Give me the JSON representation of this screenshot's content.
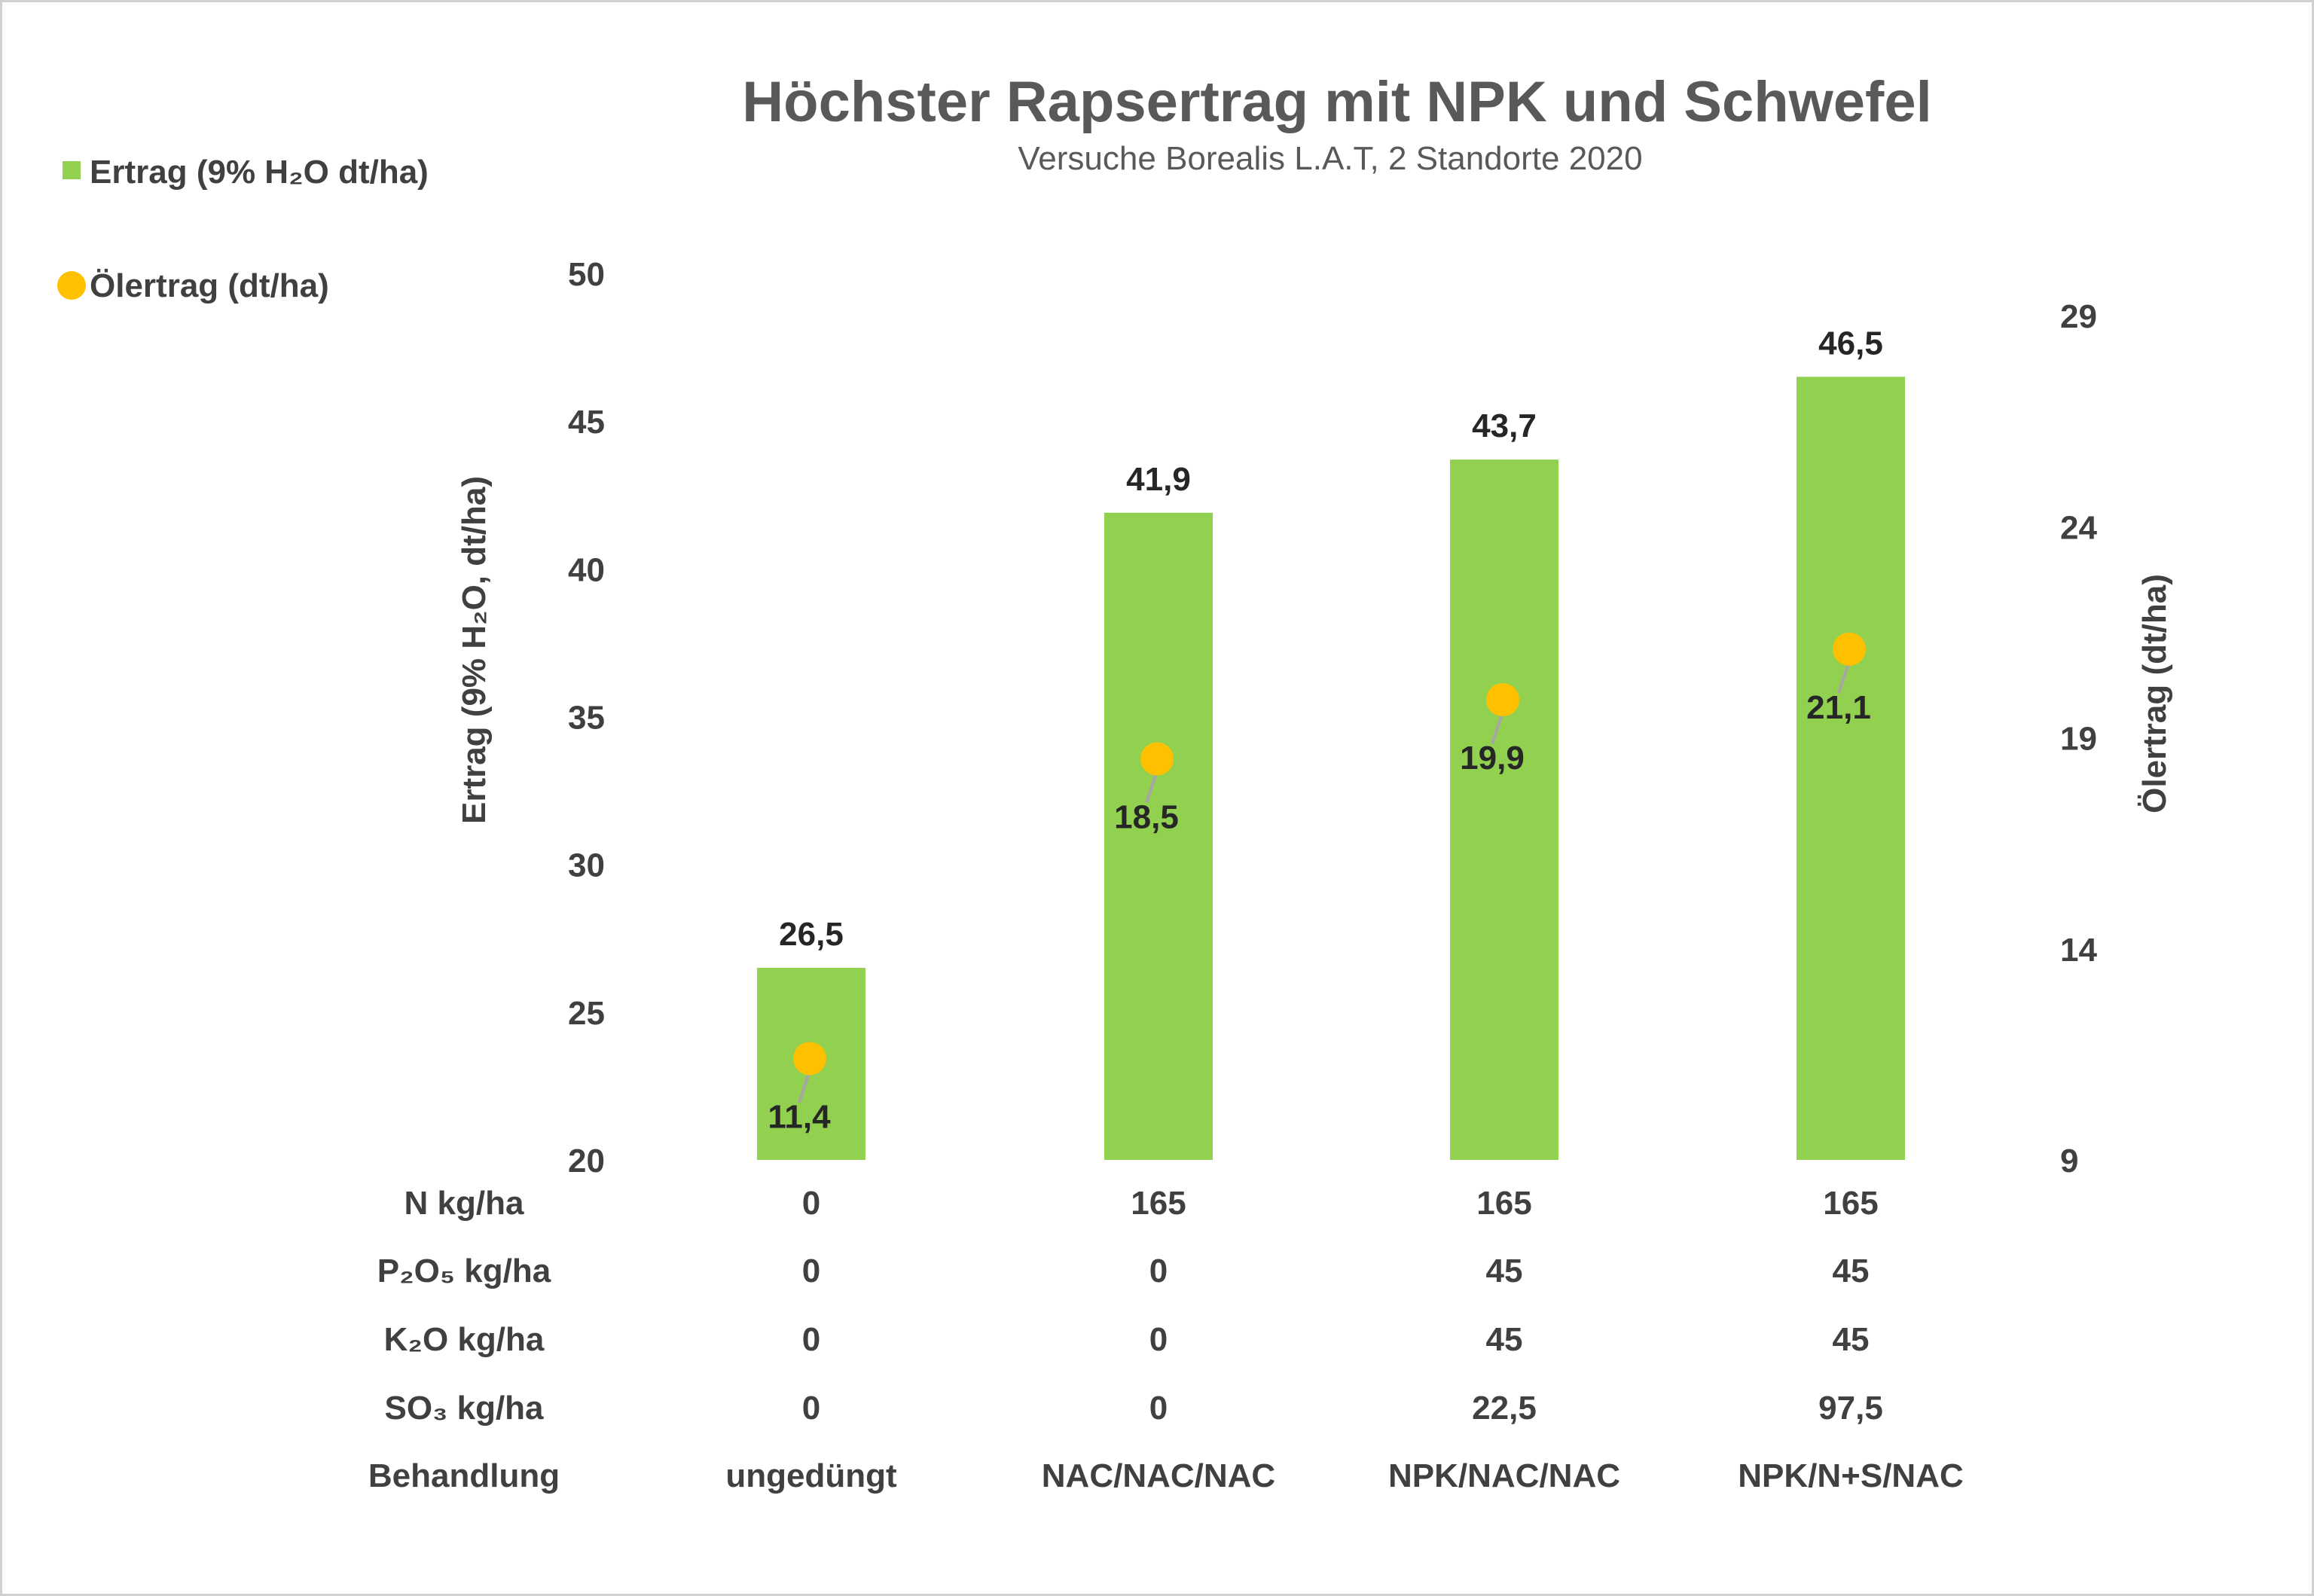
{
  "colors": {
    "bar": "#92d050",
    "dot": "#ffc000",
    "leader": "#a6a6a6"
  },
  "chart_data": {
    "type": "bar",
    "title": "Höchster Rapsertrag mit NPK und Schwefel",
    "subtitle": "Versuche Borealis L.A.T, 2 Standorte 2020",
    "categories": [
      "ungedüngt",
      "NAC/NAC/NAC",
      "NPK/NAC/NAC",
      "NPK/N+S/NAC"
    ],
    "series": [
      {
        "name": "Ertrag (9%  H₂O dt/ha)",
        "type": "bar",
        "axis": "left",
        "values": [
          26.5,
          41.9,
          43.7,
          46.5
        ],
        "labels": [
          "26,5",
          "41,9",
          "43,7",
          "46,5"
        ]
      },
      {
        "name": "Ölertrag (dt/ha)",
        "type": "scatter",
        "axis": "right",
        "values": [
          11.4,
          18.5,
          19.9,
          21.1
        ],
        "labels": [
          "11,4",
          "18,5",
          "19,9",
          "21,1"
        ]
      }
    ],
    "ylabel": "Ertrag (9% H₂O, dt/ha)",
    "ylabel_right": "Ölertrag (dt/ha)",
    "ylim": [
      20,
      50
    ],
    "yticks": [
      "20",
      "25",
      "30",
      "35",
      "40",
      "45",
      "50"
    ],
    "ylim_right": [
      9,
      30
    ],
    "yticks_right": [
      "9",
      "14",
      "19",
      "24",
      "29"
    ],
    "grid": false,
    "legend": "top-left",
    "table": {
      "rows": [
        {
          "label": "N kg/ha",
          "values": [
            "0",
            "165",
            "165",
            "165"
          ]
        },
        {
          "label": "P₂O₅ kg/ha",
          "values": [
            "0",
            "0",
            "45",
            "45"
          ]
        },
        {
          "label": "K₂O kg/ha",
          "values": [
            "0",
            "0",
            "45",
            "45"
          ]
        },
        {
          "label": "SO₃ kg/ha",
          "values": [
            "0",
            "0",
            "22,5",
            "97,5"
          ]
        },
        {
          "label": "Behandlung",
          "values": [
            "ungedüngt",
            "NAC/NAC/NAC",
            "NPK/NAC/NAC",
            "NPK/N+S/NAC"
          ]
        }
      ]
    }
  }
}
